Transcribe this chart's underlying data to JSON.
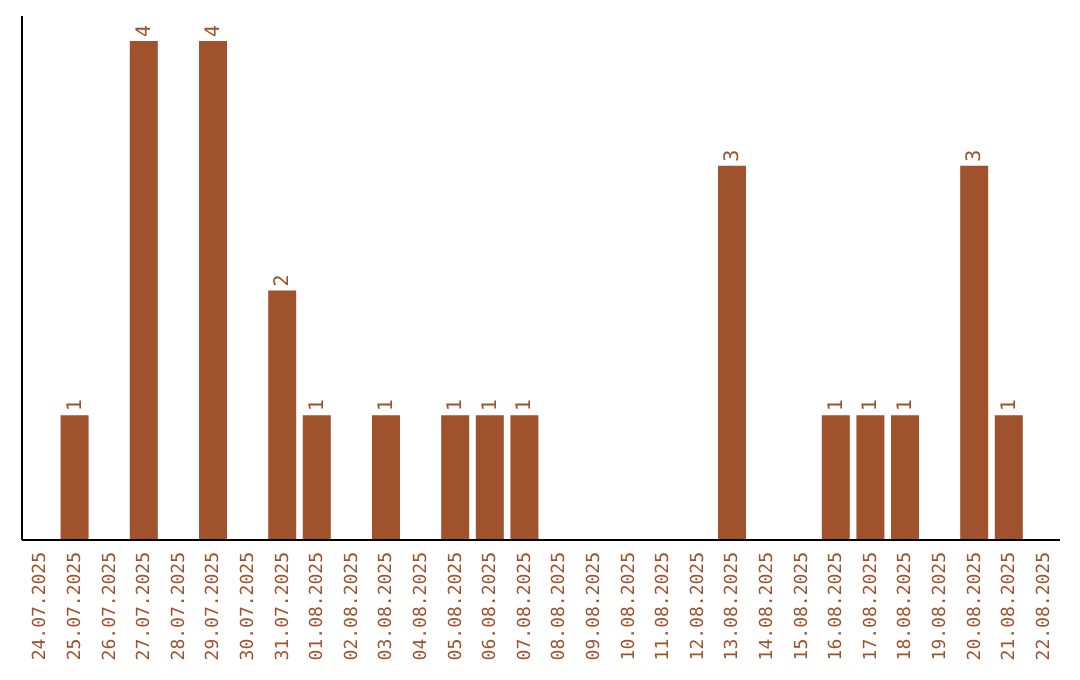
{
  "chart_data": {
    "type": "bar",
    "categories": [
      "24.07.2025",
      "25.07.2025",
      "26.07.2025",
      "27.07.2025",
      "28.07.2025",
      "29.07.2025",
      "30.07.2025",
      "31.07.2025",
      "01.08.2025",
      "02.08.2025",
      "03.08.2025",
      "04.08.2025",
      "05.08.2025",
      "06.08.2025",
      "07.08.2025",
      "08.08.2025",
      "09.08.2025",
      "10.08.2025",
      "11.08.2025",
      "12.08.2025",
      "13.08.2025",
      "14.08.2025",
      "15.08.2025",
      "16.08.2025",
      "17.08.2025",
      "18.08.2025",
      "19.08.2025",
      "20.08.2025",
      "21.08.2025",
      "22.08.2025"
    ],
    "values": [
      null,
      1,
      null,
      4,
      null,
      4,
      null,
      2,
      1,
      null,
      1,
      null,
      1,
      1,
      1,
      null,
      null,
      null,
      null,
      null,
      3,
      null,
      null,
      1,
      1,
      1,
      null,
      3,
      1,
      null
    ],
    "color": "#a0522d",
    "data_labels": true
  }
}
